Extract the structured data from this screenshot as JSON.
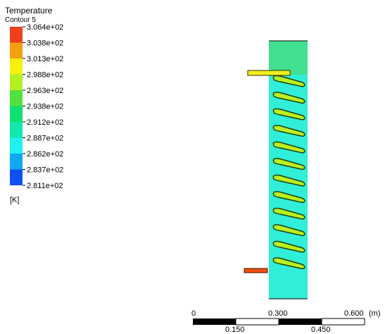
{
  "legend": {
    "title": "Temperature",
    "subtitle": "Contour 5",
    "labels": [
      "3.064e+02",
      "3.038e+02",
      "3.013e+02",
      "2.988e+02",
      "2.963e+02",
      "2.938e+02",
      "2.912e+02",
      "2.887e+02",
      "2.862e+02",
      "2.837e+02",
      "2.811e+02"
    ],
    "colors": [
      "#f0401a",
      "#f5a010",
      "#f5f010",
      "#b4f020",
      "#50e040",
      "#10e070",
      "#10e8b0",
      "#20f0f0",
      "#10a8f0",
      "#1050f0"
    ],
    "unit": "[K]"
  },
  "scale": {
    "top_labels": [
      "0",
      "0.300",
      "0.600"
    ],
    "unit": "(m)",
    "bottom_labels": [
      "0.150",
      "0.450"
    ]
  }
}
